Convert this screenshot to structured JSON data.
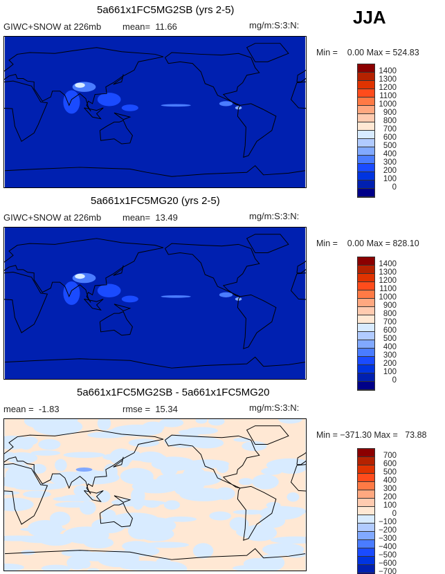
{
  "season": "JJA",
  "chart_data": [
    {
      "type": "heatmap",
      "title": "5a661x1FC5MG2SB (yrs 2-5)",
      "subtitle_left": "GIWC+SNOW at 226mb",
      "mean_label": "mean=  11.66",
      "rmse_label": "",
      "units": "mg/m:S:3:N:",
      "minmax": "Min =    0.00 Max = 524.83",
      "min": 0.0,
      "max": 524.83,
      "mean": 11.66,
      "levels": [
        "1400",
        "1300",
        "1200",
        "1100",
        "1000",
        "900",
        "800",
        "700",
        "600",
        "500",
        "400",
        "300",
        "200",
        "100",
        "0"
      ],
      "background": "#0020b0",
      "kind": "abs"
    },
    {
      "type": "heatmap",
      "title": "5a661x1FC5MG20 (yrs 2-5)",
      "subtitle_left": "GIWC+SNOW at 226mb",
      "mean_label": "mean=  13.49",
      "rmse_label": "",
      "units": "mg/m:S:3:N:",
      "minmax": "Min =    0.00 Max = 828.10",
      "min": 0.0,
      "max": 828.1,
      "mean": 13.49,
      "levels": [
        "1400",
        "1300",
        "1200",
        "1100",
        "1000",
        "900",
        "800",
        "700",
        "600",
        "500",
        "400",
        "300",
        "200",
        "100",
        "0"
      ],
      "background": "#0020b0",
      "kind": "abs"
    },
    {
      "type": "heatmap",
      "title": "5a661x1FC5MG2SB - 5a661x1FC5MG20",
      "subtitle_left": "mean =  -1.83",
      "mean_label": "",
      "rmse_label": "rmse =  15.34",
      "units": "mg/m:S:3:N:",
      "minmax": "Min = −371.30 Max =   73.88",
      "min": -371.3,
      "max": 73.88,
      "mean": -1.83,
      "rmse": 15.34,
      "levels": [
        "700",
        "600",
        "500",
        "400",
        "300",
        "200",
        "100",
        "0",
        "−100",
        "−200",
        "−300",
        "−400",
        "−500",
        "−600",
        "−700"
      ],
      "background": "#ffe8d4",
      "kind": "diff"
    }
  ],
  "colors": [
    "#8b0000",
    "#b52200",
    "#e03300",
    "#ff4c1c",
    "#ff7a45",
    "#ffa880",
    "#ffcbb0",
    "#ffe8d4",
    "#d8ebff",
    "#b1cbff",
    "#81a9ff",
    "#4a7cff",
    "#1a4bff",
    "#0034e0",
    "#0020b0",
    "#000088"
  ]
}
